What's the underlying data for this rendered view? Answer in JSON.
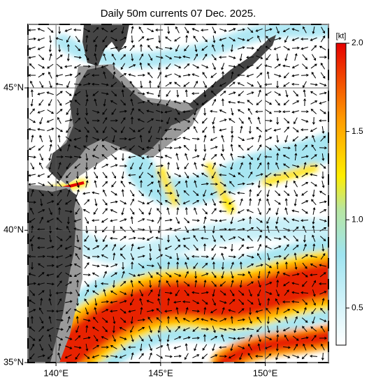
{
  "chart_data": {
    "type": "map",
    "title": "Daily 50m currents 07 Dec. 2025.",
    "xlim": [
      138.66,
      153.02
    ],
    "ylim": [
      35,
      47.1
    ],
    "xticks": [
      {
        "value": 140,
        "label": "140°E"
      },
      {
        "value": 145,
        "label": "145°E"
      },
      {
        "value": 150,
        "label": "150°E"
      }
    ],
    "yticks": [
      {
        "value": 35,
        "label": "35°N"
      },
      {
        "value": 40,
        "label": "40°N"
      },
      {
        "value": 45,
        "label": "45°N"
      }
    ],
    "colorbar": {
      "unit": "[kt]",
      "clim": [
        0.29,
        2.0
      ],
      "ticks": [
        0.5,
        {
          "value": 1,
          "label": "1.0"
        },
        1.5,
        {
          "value": 2,
          "label": "2.0"
        }
      ]
    },
    "grid": true
  }
}
